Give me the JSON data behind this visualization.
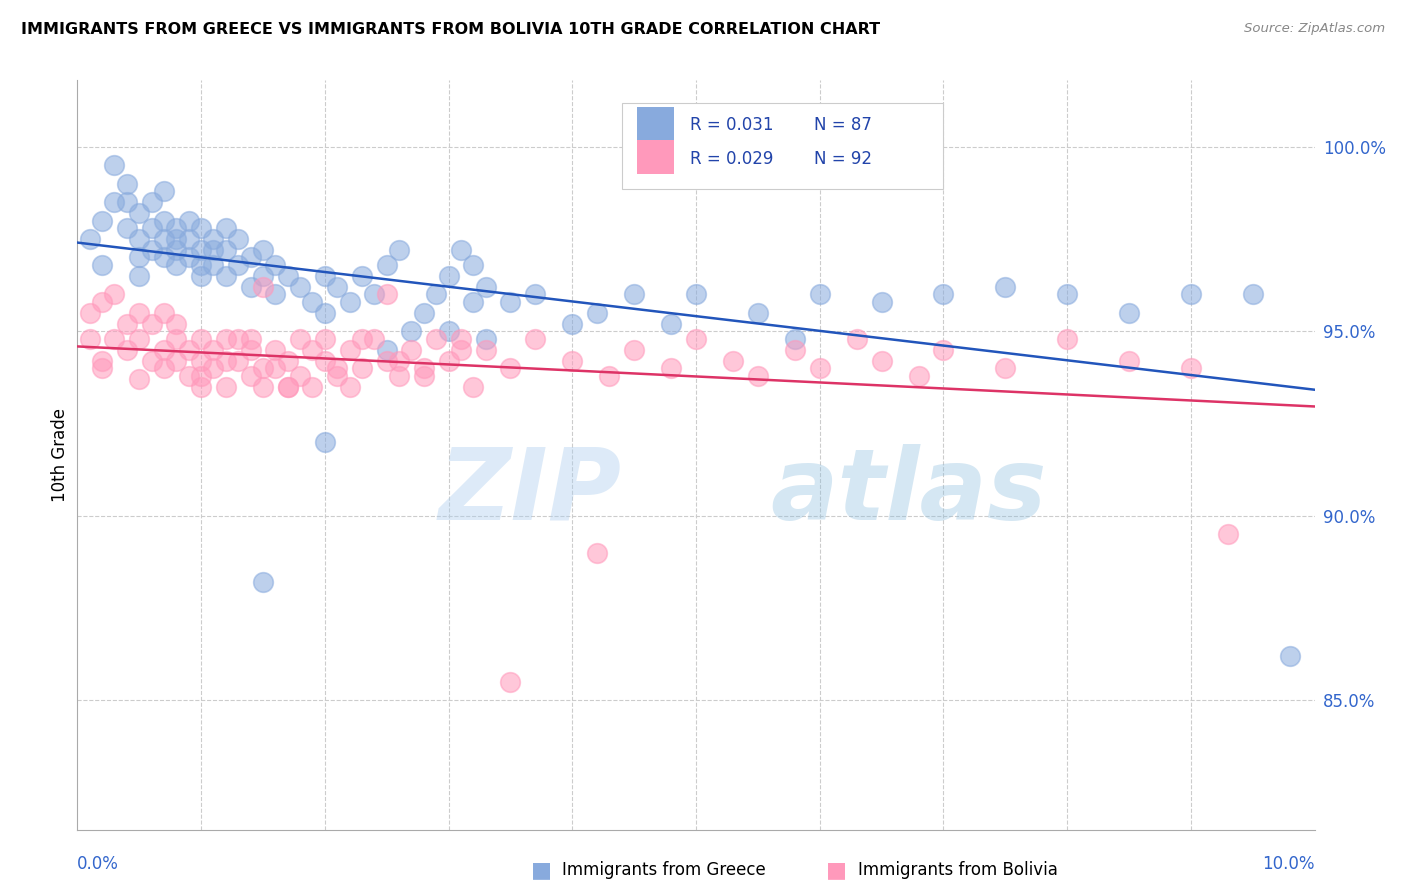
{
  "title": "IMMIGRANTS FROM GREECE VS IMMIGRANTS FROM BOLIVIA 10TH GRADE CORRELATION CHART",
  "source": "Source: ZipAtlas.com",
  "ylabel": "10th Grade",
  "ytick_values": [
    0.85,
    0.9,
    0.95,
    1.0
  ],
  "xlim": [
    0.0,
    0.1
  ],
  "ylim": [
    0.815,
    1.018
  ],
  "blue_color": "#88AADD",
  "pink_color": "#FF99BB",
  "blue_line_color": "#2255BB",
  "pink_line_color": "#DD3366",
  "watermark_zip": "ZIP",
  "watermark_atlas": "atlas",
  "greece_scatter_x": [
    0.001,
    0.002,
    0.002,
    0.003,
    0.003,
    0.004,
    0.004,
    0.004,
    0.005,
    0.005,
    0.005,
    0.005,
    0.006,
    0.006,
    0.006,
    0.007,
    0.007,
    0.007,
    0.007,
    0.008,
    0.008,
    0.008,
    0.008,
    0.009,
    0.009,
    0.009,
    0.01,
    0.01,
    0.01,
    0.01,
    0.011,
    0.011,
    0.011,
    0.012,
    0.012,
    0.012,
    0.013,
    0.013,
    0.014,
    0.014,
    0.015,
    0.015,
    0.016,
    0.016,
    0.017,
    0.018,
    0.019,
    0.02,
    0.02,
    0.021,
    0.022,
    0.023,
    0.024,
    0.025,
    0.026,
    0.028,
    0.029,
    0.03,
    0.031,
    0.032,
    0.033,
    0.035,
    0.037,
    0.04,
    0.042,
    0.045,
    0.048,
    0.05,
    0.055,
    0.058,
    0.06,
    0.065,
    0.07,
    0.075,
    0.08,
    0.085,
    0.09,
    0.095,
    0.098,
    0.03,
    0.032,
    0.025,
    0.02,
    0.015,
    0.027,
    0.033
  ],
  "greece_scatter_y": [
    0.975,
    0.968,
    0.98,
    0.985,
    0.995,
    0.985,
    0.978,
    0.99,
    0.982,
    0.975,
    0.97,
    0.965,
    0.972,
    0.978,
    0.985,
    0.97,
    0.975,
    0.98,
    0.988,
    0.972,
    0.978,
    0.968,
    0.975,
    0.97,
    0.975,
    0.98,
    0.968,
    0.972,
    0.978,
    0.965,
    0.972,
    0.968,
    0.975,
    0.965,
    0.972,
    0.978,
    0.968,
    0.975,
    0.962,
    0.97,
    0.965,
    0.972,
    0.96,
    0.968,
    0.965,
    0.962,
    0.958,
    0.965,
    0.955,
    0.962,
    0.958,
    0.965,
    0.96,
    0.968,
    0.972,
    0.955,
    0.96,
    0.965,
    0.972,
    0.968,
    0.962,
    0.958,
    0.96,
    0.952,
    0.955,
    0.96,
    0.952,
    0.96,
    0.955,
    0.948,
    0.96,
    0.958,
    0.96,
    0.962,
    0.96,
    0.955,
    0.96,
    0.96,
    0.862,
    0.95,
    0.958,
    0.945,
    0.92,
    0.882,
    0.95,
    0.948
  ],
  "bolivia_scatter_x": [
    0.001,
    0.001,
    0.002,
    0.002,
    0.003,
    0.003,
    0.004,
    0.004,
    0.005,
    0.005,
    0.006,
    0.006,
    0.007,
    0.007,
    0.007,
    0.008,
    0.008,
    0.008,
    0.009,
    0.009,
    0.01,
    0.01,
    0.01,
    0.011,
    0.011,
    0.012,
    0.012,
    0.013,
    0.013,
    0.014,
    0.014,
    0.015,
    0.015,
    0.016,
    0.016,
    0.017,
    0.017,
    0.018,
    0.018,
    0.019,
    0.02,
    0.02,
    0.021,
    0.022,
    0.022,
    0.023,
    0.024,
    0.025,
    0.026,
    0.027,
    0.028,
    0.029,
    0.03,
    0.031,
    0.032,
    0.033,
    0.035,
    0.037,
    0.04,
    0.043,
    0.045,
    0.048,
    0.05,
    0.053,
    0.055,
    0.058,
    0.06,
    0.063,
    0.065,
    0.068,
    0.07,
    0.075,
    0.08,
    0.085,
    0.09,
    0.093,
    0.01,
    0.012,
    0.014,
    0.017,
    0.019,
    0.021,
    0.023,
    0.026,
    0.028,
    0.031,
    0.015,
    0.025,
    0.035,
    0.042,
    0.002,
    0.005
  ],
  "bolivia_scatter_y": [
    0.955,
    0.948,
    0.958,
    0.942,
    0.948,
    0.96,
    0.952,
    0.945,
    0.955,
    0.948,
    0.942,
    0.952,
    0.945,
    0.955,
    0.94,
    0.948,
    0.942,
    0.952,
    0.945,
    0.938,
    0.948,
    0.942,
    0.935,
    0.945,
    0.94,
    0.948,
    0.935,
    0.942,
    0.948,
    0.938,
    0.945,
    0.94,
    0.935,
    0.945,
    0.94,
    0.935,
    0.942,
    0.938,
    0.948,
    0.935,
    0.942,
    0.948,
    0.938,
    0.945,
    0.935,
    0.94,
    0.948,
    0.942,
    0.938,
    0.945,
    0.94,
    0.948,
    0.942,
    0.948,
    0.935,
    0.945,
    0.94,
    0.948,
    0.942,
    0.938,
    0.945,
    0.94,
    0.948,
    0.942,
    0.938,
    0.945,
    0.94,
    0.948,
    0.942,
    0.938,
    0.945,
    0.94,
    0.948,
    0.942,
    0.94,
    0.895,
    0.938,
    0.942,
    0.948,
    0.935,
    0.945,
    0.94,
    0.948,
    0.942,
    0.938,
    0.945,
    0.962,
    0.96,
    0.855,
    0.89,
    0.94,
    0.937
  ]
}
